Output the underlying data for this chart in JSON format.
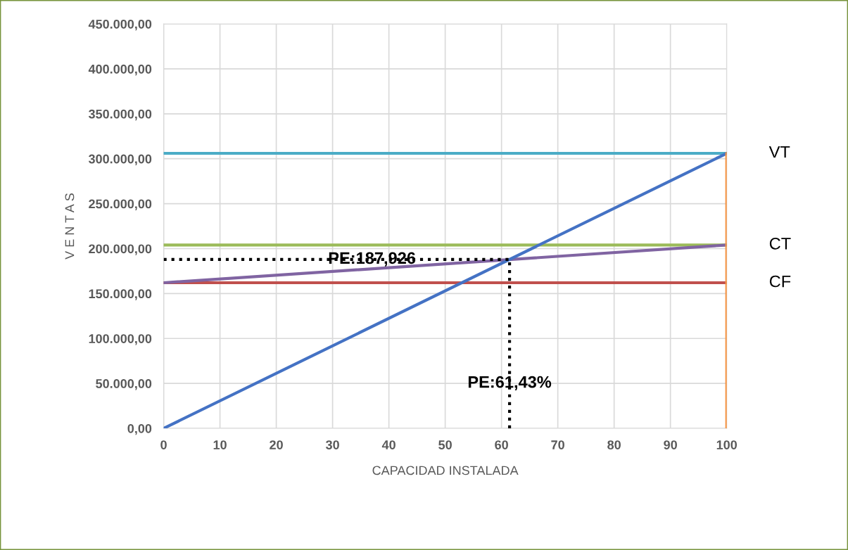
{
  "chart_data": {
    "type": "line",
    "xlabel": "CAPACIDAD INSTALADA",
    "ylabel": "V E N T A S",
    "series": [
      {
        "x": [
          0,
          100
        ],
        "values": [
          306000,
          306000
        ],
        "color": "#4bacc6"
      },
      {
        "x": [
          0,
          100
        ],
        "values": [
          204000,
          204000
        ],
        "color": "#9bbb59"
      },
      {
        "x": [
          0,
          100
        ],
        "values": [
          162000,
          162000
        ],
        "color": "#c0504d"
      },
      {
        "x": [
          0,
          100
        ],
        "values": [
          162000,
          204000
        ],
        "color": "#8064a2"
      },
      {
        "x": [
          0,
          100
        ],
        "values": [
          0,
          306000
        ],
        "color": "#4472c4"
      },
      {
        "x": [
          100,
          100
        ],
        "values": [
          0,
          306000
        ],
        "color": "#f79646"
      },
      {
        "x": [
          0,
          61.43
        ],
        "values": [
          188000,
          188000
        ],
        "color": "#000000",
        "line_style": "dotted"
      },
      {
        "x": [
          61.43,
          61.43
        ],
        "values": [
          0,
          188000
        ],
        "color": "#000000",
        "line_style": "dotted"
      }
    ],
    "annotations": [
      {
        "text": "VT",
        "x": 100,
        "y": 306000
      },
      {
        "text": "CT",
        "x": 100,
        "y": 204000
      },
      {
        "text": "CF",
        "x": 100,
        "y": 162000
      },
      {
        "text": "PE:187,926",
        "x": 37,
        "y": 187926
      },
      {
        "text": "PE:61,43%",
        "x": 61.43,
        "y": 50000
      }
    ],
    "xlim": [
      0,
      100
    ],
    "xticks": [
      0,
      10,
      20,
      30,
      40,
      50,
      60,
      70,
      80,
      90,
      100
    ],
    "ylim": [
      0,
      450000
    ],
    "yticks": [
      {
        "value": 0,
        "label": "0,00"
      },
      {
        "value": 50000,
        "label": "50.000,00"
      },
      {
        "value": 100000,
        "label": "100.000,00"
      },
      {
        "value": 150000,
        "label": "150.000,00"
      },
      {
        "value": 200000,
        "label": "200.000,00"
      },
      {
        "value": 250000,
        "label": "250.000,00"
      },
      {
        "value": 300000,
        "label": "300.000,00"
      },
      {
        "value": 350000,
        "label": "350.000,00"
      },
      {
        "value": 400000,
        "label": "400.000,00"
      },
      {
        "value": 450000,
        "label": "450.000,00"
      }
    ],
    "grid": true,
    "marker": "none",
    "line_style": "solid"
  }
}
